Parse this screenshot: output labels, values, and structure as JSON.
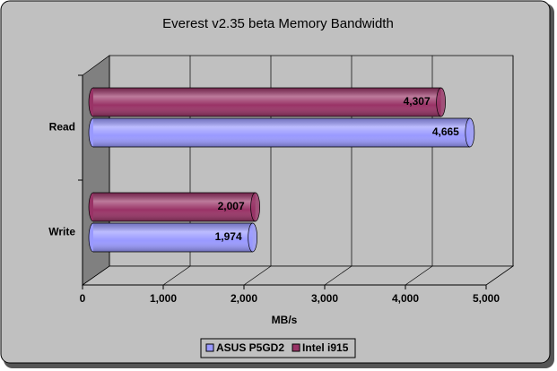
{
  "chart_data": {
    "type": "bar",
    "orientation": "horizontal",
    "title": "Everest v2.35 beta Memory Bandwidth",
    "x_label": "MB/s",
    "categories": [
      "Read",
      "Write"
    ],
    "series": [
      {
        "name": "ASUS P5GD2",
        "color": "#9999ff",
        "values": [
          4665,
          1974
        ],
        "value_labels": [
          "4,665",
          "1,974"
        ]
      },
      {
        "name": "Intel i915",
        "color": "#993366",
        "values": [
          4307,
          2007
        ],
        "value_labels": [
          "4,307",
          "2,007"
        ]
      }
    ],
    "xlim": [
      0,
      5000
    ],
    "xticks": [
      0,
      {
        "value": 1000,
        "label": "1,000"
      },
      {
        "value": 2000,
        "label": "2,000"
      },
      {
        "value": 3000,
        "label": "3,000"
      },
      {
        "value": 4000,
        "label": "4,000"
      },
      {
        "value": 5000,
        "label": "5,000"
      }
    ],
    "grid": true
  }
}
